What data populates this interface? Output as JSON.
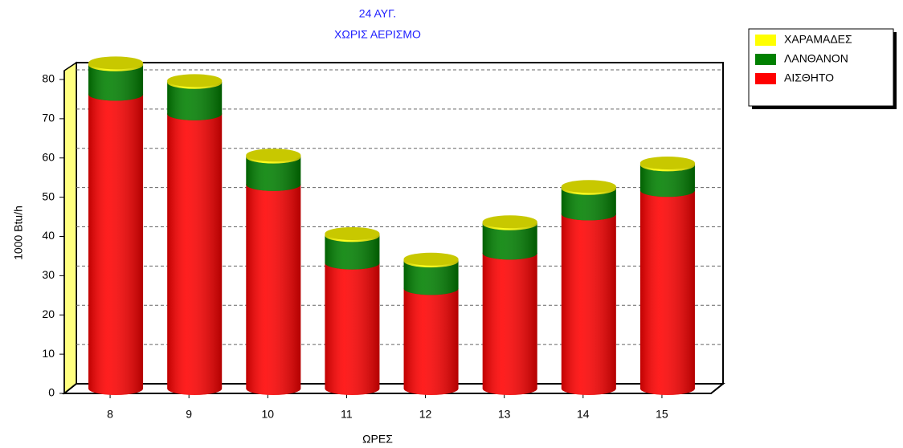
{
  "chart_data": {
    "type": "bar3d_stacked",
    "title": "24 ΑΥΓ.",
    "subtitle": "ΧΩΡΙΣ ΑΕΡΙΣΜΟ",
    "x_label": "ΩΡΕΣ",
    "y_label": "1000 Btu/h",
    "categories": [
      "8",
      "9",
      "10",
      "11",
      "12",
      "13",
      "14",
      "15"
    ],
    "series": [
      {
        "name": "ΑΙΣΘΗΤΟ",
        "color": "#ff0000",
        "values": [
          75,
          70,
          52,
          32,
          25.5,
          34.5,
          44.5,
          50.5
        ]
      },
      {
        "name": "ΛΑΝΘΑΝΟΝ",
        "color": "#008000",
        "values": [
          7.5,
          8,
          7,
          7,
          7,
          7.5,
          6.5,
          6.5
        ]
      },
      {
        "name": "ΧΑΡΑΜΑΔΕΣ",
        "color": "#ffff00",
        "values": [
          0.5,
          0.5,
          0.5,
          0.5,
          0.5,
          0.5,
          0.5,
          0.5
        ]
      }
    ],
    "ylim": [
      0,
      80
    ],
    "yticks": [
      0,
      10,
      20,
      30,
      40,
      50,
      60,
      70,
      80
    ],
    "grid": true,
    "legend": "top-right"
  }
}
